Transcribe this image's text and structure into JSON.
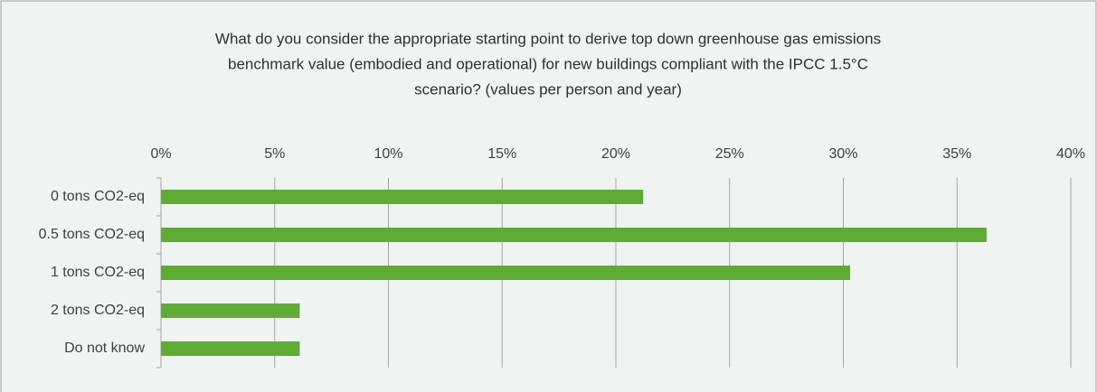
{
  "chart_data": {
    "type": "bar",
    "orientation": "horizontal",
    "title": [
      "What do you consider the appropriate starting point to derive top down greenhouse gas emissions",
      "benchmark value (embodied and operational) for new buildings compliant with the IPCC 1.5°C",
      "scenario? (values per person and year)"
    ],
    "categories": [
      "0 tons  CO2-eq",
      "0.5 tons  CO2-eq",
      "1 tons  CO2-eq",
      "2 tons  CO2-eq",
      "Do not know"
    ],
    "values": [
      21.2,
      36.3,
      30.3,
      6.1,
      6.1
    ],
    "color": "#5fac35",
    "xlim": [
      0,
      40
    ],
    "xticks": [
      {
        "value": 0,
        "label": "0%"
      },
      {
        "value": 5,
        "label": "5%"
      },
      {
        "value": 10,
        "label": "10%"
      },
      {
        "value": 15,
        "label": "15%"
      },
      {
        "value": 20,
        "label": "20%"
      },
      {
        "value": 25,
        "label": "25%"
      },
      {
        "value": 30,
        "label": "30%"
      },
      {
        "value": 35,
        "label": "35%"
      },
      {
        "value": 40,
        "label": "40%"
      }
    ],
    "grid": true
  }
}
